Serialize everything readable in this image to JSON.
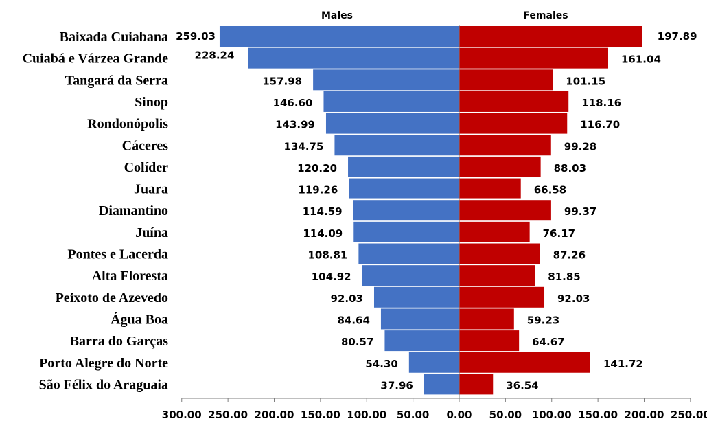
{
  "chart_data": {
    "type": "bar",
    "orientation": "horizontal-diverging",
    "categories": [
      "Baixada Cuiabana",
      "Cuiabá e Várzea Grande",
      "Tangará da Serra",
      "Sinop",
      "Rondonópolis",
      "Cáceres",
      "Colíder",
      "Juara",
      "Diamantino",
      "Juína",
      "Pontes e Lacerda",
      "Alta Floresta",
      "Peixoto de Azevedo",
      "Água Boa",
      "Barra do Garças",
      "Porto Alegre do Norte",
      "São Félix do Araguaia"
    ],
    "series": [
      {
        "name": "Males",
        "side": "left",
        "color": "#4472C4",
        "values": [
          259.03,
          228.24,
          157.98,
          146.6,
          143.99,
          134.75,
          120.2,
          119.26,
          114.59,
          114.09,
          108.81,
          104.92,
          92.03,
          84.64,
          80.57,
          54.3,
          37.96
        ],
        "labels": [
          "259.03",
          "228.24",
          "157.98",
          "146.60",
          "143.99",
          "134.75",
          "120.20",
          "119.26",
          "114.59",
          "114.09",
          "108.81",
          "104.92",
          "92.03",
          "84.64",
          "80.57",
          "54.30",
          "37.96"
        ]
      },
      {
        "name": "Females",
        "side": "right",
        "color": "#C00000",
        "values": [
          197.89,
          161.04,
          101.15,
          118.16,
          116.7,
          99.28,
          88.03,
          66.58,
          99.37,
          76.17,
          87.26,
          81.85,
          92.03,
          59.23,
          64.67,
          141.72,
          36.54
        ],
        "labels": [
          "197.89",
          "161.04",
          "101.15",
          "118.16",
          "116.70",
          "99.28",
          "88.03",
          "66.58",
          "99.37",
          "76.17",
          "87.26",
          "81.85",
          "92.03",
          "59.23",
          "64.67",
          "141.72",
          "36.54"
        ]
      }
    ],
    "x_ticks": [
      "300.00",
      "250.00",
      "200.00",
      "150.00",
      "100.00",
      "50.00",
      "0.00",
      "50.00",
      "100.00",
      "150.00",
      "200.00",
      "250.00"
    ],
    "xlim": [
      -300,
      250
    ],
    "grid": false,
    "legend": "none",
    "title": "",
    "xlabel": "",
    "ylabel": ""
  }
}
